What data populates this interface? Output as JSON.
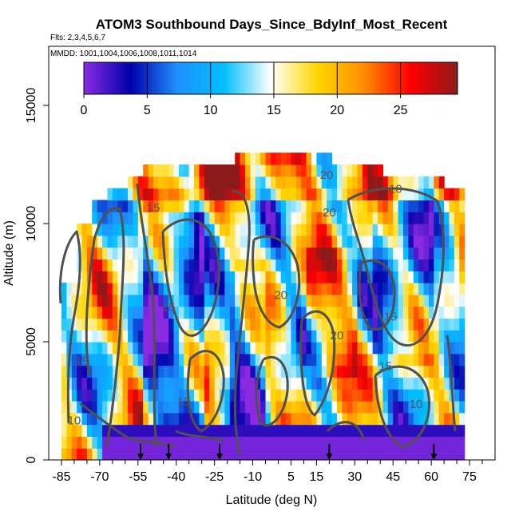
{
  "chart_data": {
    "type": "heatmap",
    "title": "ATOM3 Southbound Days_Since_BdyInf_Most_Recent",
    "subtitle_flights": "Flts: 2,3,4,5,6,7",
    "subtitle_dates": "MMDD: 1001,1004,1006,1008,1011,1014",
    "xlabel": "Latitude (deg N)",
    "ylabel": "Altitude (m)",
    "xlim": [
      -90,
      85
    ],
    "ylim": [
      0,
      17500
    ],
    "x_ticks": [
      -85,
      -70,
      -55,
      -40,
      -25,
      -10,
      5,
      15,
      30,
      45,
      60,
      75
    ],
    "x_tick_labels": [
      "-85",
      "-70",
      "-55",
      "-40",
      "-25",
      "-10",
      "5",
      "15",
      "30",
      "45",
      "60",
      "75"
    ],
    "x_minor_ticks": [
      -80,
      -75,
      -65,
      -60,
      -50,
      -45,
      -35,
      -30,
      -20,
      -15,
      -5,
      0,
      10,
      20,
      25,
      35,
      40,
      50,
      55,
      65,
      70,
      80
    ],
    "y_ticks": [
      0,
      5000,
      10000,
      15000
    ],
    "y_tick_labels": [
      "0",
      "5000",
      "10000",
      "15000"
    ],
    "colorbar": {
      "range": [
        0,
        29.5
      ],
      "ticks": [
        0,
        5,
        10,
        15,
        20,
        25
      ],
      "tick_labels": [
        "0",
        "5",
        "10",
        "15",
        "20",
        "25"
      ],
      "colors": [
        "#8a2be2",
        "#0000aa",
        "#1e90ff",
        "#00bfff",
        "#ffffff",
        "#ffd700",
        "#ff8c00",
        "#ff0000",
        "#8b1a1a"
      ]
    },
    "contour_labels": [
      {
        "text": "15",
        "lat": -49,
        "alt": 10500
      },
      {
        "text": "20",
        "lat": 20,
        "alt": 10300
      },
      {
        "text": "10",
        "lat": 46,
        "alt": 11300
      },
      {
        "text": "20",
        "lat": 1,
        "alt": 6800
      },
      {
        "text": "15",
        "lat": -43,
        "alt": 6300
      },
      {
        "text": "15",
        "lat": 44,
        "alt": 5900
      },
      {
        "text": "20",
        "lat": 23,
        "alt": 5100
      },
      {
        "text": "15",
        "lat": -77,
        "alt": 4000
      },
      {
        "text": "15",
        "lat": 42,
        "alt": 3800
      },
      {
        "text": "15",
        "lat": -37,
        "alt": 2300
      },
      {
        "text": "10",
        "lat": 54,
        "alt": 2200
      },
      {
        "text": "10",
        "lat": -80,
        "alt": 1500
      },
      {
        "text": "20",
        "lat": 19,
        "alt": 11900
      }
    ],
    "flight_arrows_lat": [
      -54,
      -43,
      -23,
      20,
      61
    ],
    "grid": false
  }
}
